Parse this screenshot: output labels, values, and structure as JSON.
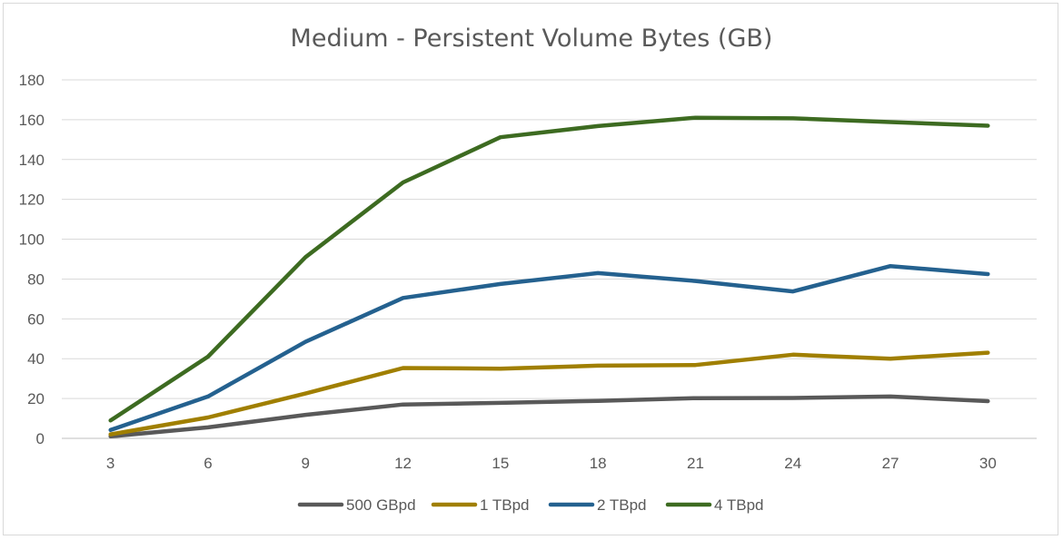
{
  "chart_data": {
    "type": "line",
    "title": "Medium - Persistent Volume Bytes (GB)",
    "xlabel": "",
    "ylabel": "",
    "x": [
      "3",
      "6",
      "9",
      "12",
      "15",
      "18",
      "21",
      "24",
      "27",
      "30"
    ],
    "ylim": [
      0,
      180
    ],
    "yticks": [
      0,
      20,
      40,
      60,
      80,
      100,
      120,
      140,
      160,
      180
    ],
    "grid": true,
    "legend_position": "bottom",
    "series": [
      {
        "name": "500 GBpd",
        "color": "#595959",
        "values": [
          1.0,
          5.5,
          11.8,
          17.0,
          17.8,
          18.8,
          20.2,
          20.3,
          21.0,
          18.7
        ]
      },
      {
        "name": "1 TBpd",
        "color": "#a07f00",
        "values": [
          2.0,
          10.5,
          22.5,
          35.3,
          35.0,
          36.5,
          36.8,
          42.0,
          40.0,
          43.0
        ]
      },
      {
        "name": "2 TBpd",
        "color": "#24618f",
        "values": [
          4.2,
          21.0,
          48.5,
          70.5,
          77.5,
          83.0,
          79.0,
          73.8,
          86.5,
          82.5
        ]
      },
      {
        "name": "4 TBpd",
        "color": "#3d6b21",
        "values": [
          9.0,
          41.0,
          91.0,
          128.5,
          151.2,
          156.8,
          161.0,
          160.7,
          158.8,
          157.0
        ]
      }
    ]
  }
}
